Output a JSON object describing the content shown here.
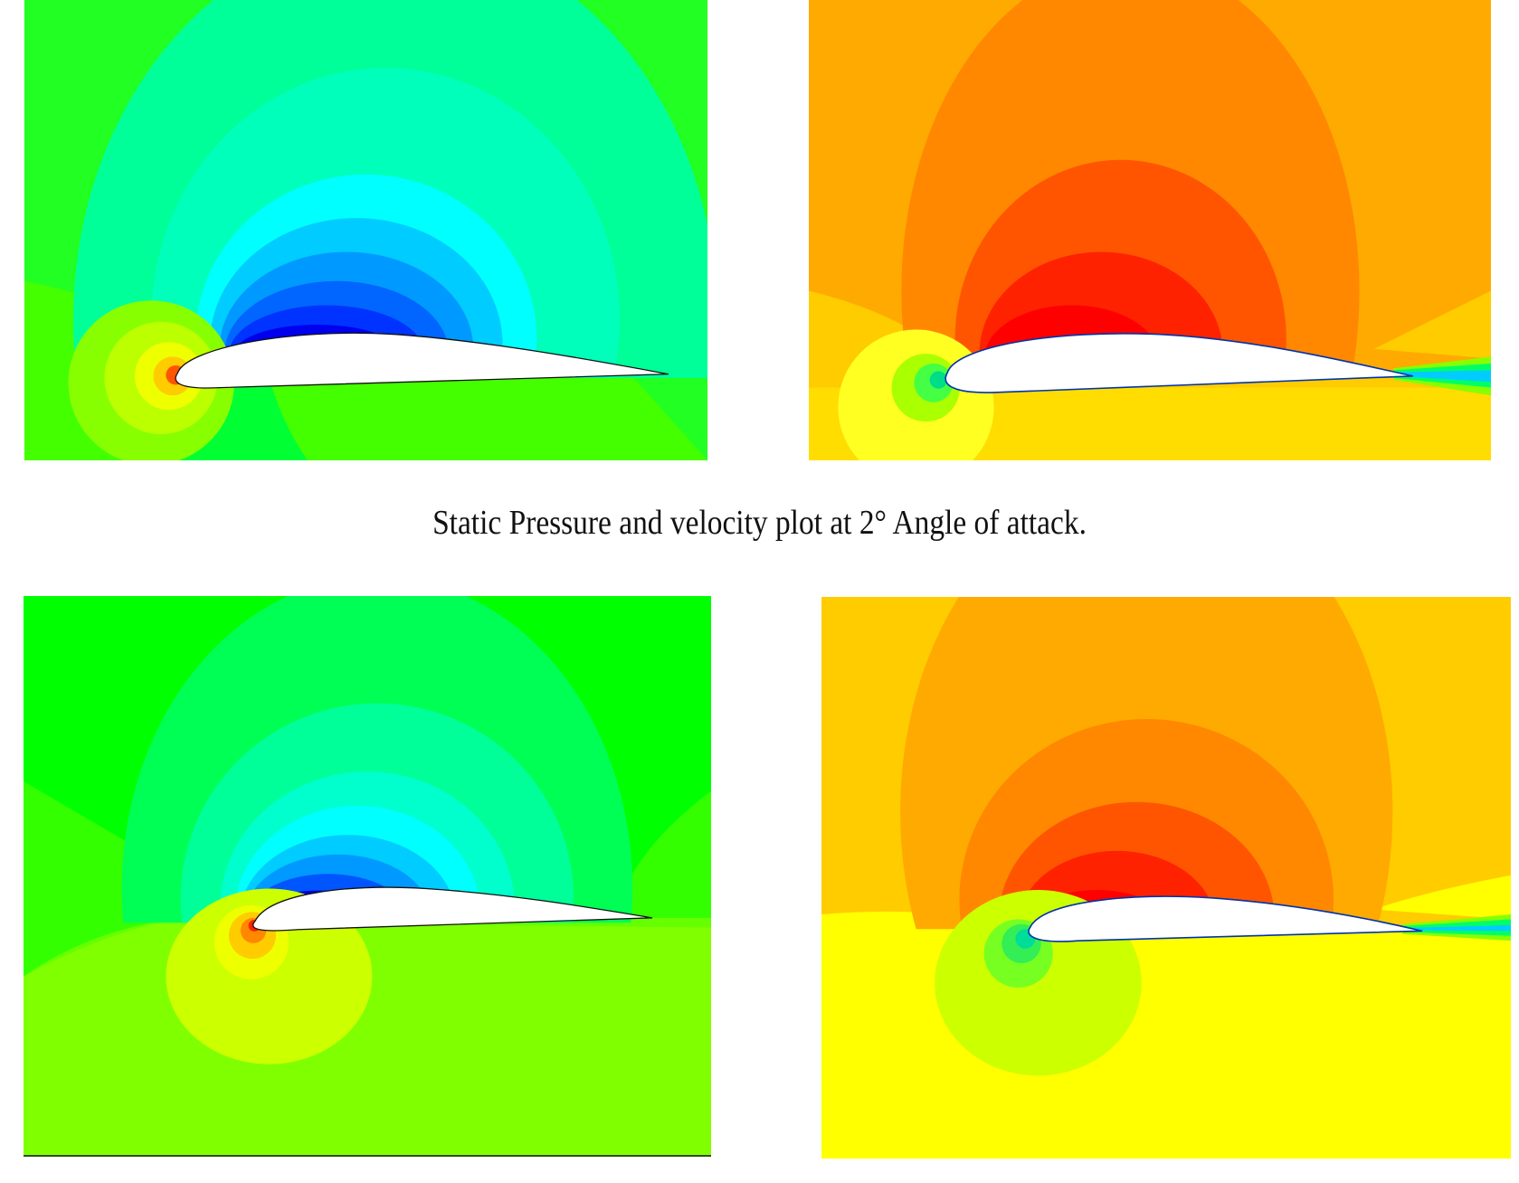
{
  "caption": "Static Pressure and velocity plot at 2° Angle of attack."
}
